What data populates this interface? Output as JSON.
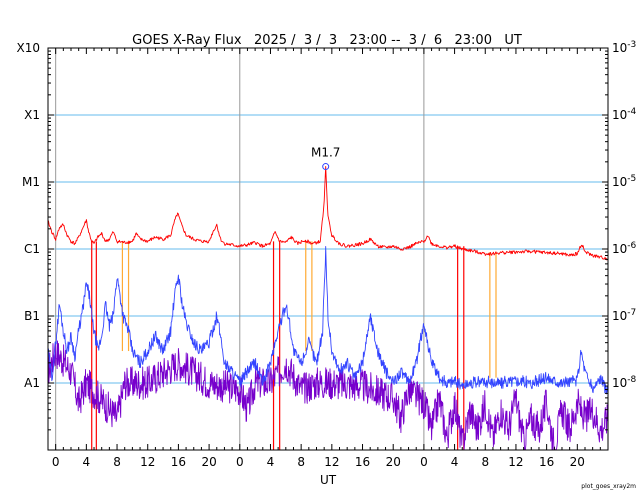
{
  "chart_data": {
    "type": "line",
    "title": "GOES X-Ray Flux   2025 /  3 /  3   23:00 --  3 /  6   23:00   UT",
    "xlabel": "UT",
    "footer": "plot_goes_xray2m",
    "x_range_hours": [
      -1,
      72
    ],
    "x_ticks": [
      {
        "t": 0,
        "label": "0"
      },
      {
        "t": 4,
        "label": "4"
      },
      {
        "t": 8,
        "label": "8"
      },
      {
        "t": 12,
        "label": "12"
      },
      {
        "t": 16,
        "label": "16"
      },
      {
        "t": 20,
        "label": "20"
      },
      {
        "t": 24,
        "label": "0"
      },
      {
        "t": 28,
        "label": "4"
      },
      {
        "t": 32,
        "label": "8"
      },
      {
        "t": 36,
        "label": "12"
      },
      {
        "t": 40,
        "label": "16"
      },
      {
        "t": 44,
        "label": "20"
      },
      {
        "t": 48,
        "label": "0"
      },
      {
        "t": 52,
        "label": "4"
      },
      {
        "t": 56,
        "label": "8"
      },
      {
        "t": 60,
        "label": "12"
      },
      {
        "t": 64,
        "label": "16"
      },
      {
        "t": 68,
        "label": "20"
      }
    ],
    "day_boundaries": [
      0,
      24,
      48
    ],
    "y_scale": "log",
    "ylim": [
      1e-09,
      0.001
    ],
    "y_left_labels": [
      {
        "value": 0.001,
        "label": "X10"
      },
      {
        "value": 0.0001,
        "label": "X1"
      },
      {
        "value": 1e-05,
        "label": "M1"
      },
      {
        "value": 1e-06,
        "label": "C1"
      },
      {
        "value": 1e-07,
        "label": "B1"
      },
      {
        "value": 1e-08,
        "label": "A1"
      }
    ],
    "y_right_labels": [
      {
        "value": 0.001,
        "base": "10",
        "exp": "-3"
      },
      {
        "value": 0.0001,
        "base": "10",
        "exp": "-4"
      },
      {
        "value": 1e-05,
        "base": "10",
        "exp": "-5"
      },
      {
        "value": 1e-06,
        "base": "10",
        "exp": "-6"
      },
      {
        "value": 1e-07,
        "base": "10",
        "exp": "-7"
      },
      {
        "value": 1e-08,
        "base": "10",
        "exp": "-8"
      }
    ],
    "flare_annotation": {
      "t": 35.2,
      "value": 1.7e-05,
      "label": "M1.7"
    },
    "colors": {
      "long": "#ff0000",
      "short": "#3344ff",
      "short_low": "#7700cc",
      "gap_orange": "#ffaa33",
      "gap_red": "#ff0000",
      "grid_blue": "#66bbee",
      "day_line": "#999999"
    },
    "series": [
      {
        "key": "long",
        "points": [
          [
            -1,
            2.6e-06
          ],
          [
            -0.5,
            1.8e-06
          ],
          [
            0,
            1.4e-06
          ],
          [
            0.5,
            2.1e-06
          ],
          [
            1,
            2.3e-06
          ],
          [
            1.5,
            1.6e-06
          ],
          [
            2,
            1.3e-06
          ],
          [
            2.5,
            1.2e-06
          ],
          [
            3,
            1.5e-06
          ],
          [
            3.5,
            2e-06
          ],
          [
            4,
            2.7e-06
          ],
          [
            4.3,
            1.8e-06
          ],
          [
            4.7,
            1.3e-06
          ],
          [
            5,
            1.2e-06
          ],
          [
            5.5,
            1.5e-06
          ],
          [
            6,
            1.7e-06
          ],
          [
            6.5,
            1.3e-06
          ],
          [
            7,
            1.4e-06
          ],
          [
            7.5,
            1.8e-06
          ],
          [
            8,
            1.3e-06
          ],
          [
            9,
            1.25e-06
          ],
          [
            10,
            1.3e-06
          ],
          [
            10.5,
            1.7e-06
          ],
          [
            11,
            1.4e-06
          ],
          [
            12,
            1.3e-06
          ],
          [
            13,
            1.5e-06
          ],
          [
            14,
            1.4e-06
          ],
          [
            15,
            1.6e-06
          ],
          [
            15.5,
            2.6e-06
          ],
          [
            15.9,
            3.4e-06
          ],
          [
            16.4,
            2.3e-06
          ],
          [
            17,
            1.6e-06
          ],
          [
            18,
            1.4e-06
          ],
          [
            19,
            1.3e-06
          ],
          [
            20,
            1.3e-06
          ],
          [
            20.5,
            1.8e-06
          ],
          [
            21,
            2.3e-06
          ],
          [
            21.5,
            1.4e-06
          ],
          [
            22,
            1.2e-06
          ],
          [
            23,
            1.15e-06
          ],
          [
            24,
            1.1e-06
          ],
          [
            25,
            1.15e-06
          ],
          [
            26,
            1.25e-06
          ],
          [
            27,
            1.1e-06
          ],
          [
            28,
            1.2e-06
          ],
          [
            28.6,
            1.8e-06
          ],
          [
            29.2,
            1.3e-06
          ],
          [
            30,
            1.25e-06
          ],
          [
            30.7,
            1.5e-06
          ],
          [
            31.5,
            1.2e-06
          ],
          [
            32.5,
            1.35e-06
          ],
          [
            33.5,
            1.2e-06
          ],
          [
            34.5,
            1.3e-06
          ],
          [
            35,
            5e-06
          ],
          [
            35.2,
            1.7e-05
          ],
          [
            35.5,
            3e-06
          ],
          [
            36,
            1.6e-06
          ],
          [
            37,
            1.2e-06
          ],
          [
            38,
            1.1e-06
          ],
          [
            39,
            1.15e-06
          ],
          [
            40,
            1.2e-06
          ],
          [
            41,
            1.4e-06
          ],
          [
            42,
            1.1e-06
          ],
          [
            43,
            1.05e-06
          ],
          [
            44,
            1.1e-06
          ],
          [
            45,
            1e-06
          ],
          [
            46,
            1.05e-06
          ],
          [
            47,
            1.2e-06
          ],
          [
            48,
            1.3e-06
          ],
          [
            48.5,
            1.6e-06
          ],
          [
            49,
            1.2e-06
          ],
          [
            50,
            1.1e-06
          ],
          [
            51,
            1.05e-06
          ],
          [
            52,
            1.1e-06
          ],
          [
            53,
            1e-06
          ],
          [
            54,
            9.5e-07
          ],
          [
            55,
            9e-07
          ],
          [
            56,
            8.5e-07
          ],
          [
            57,
            8.5e-07
          ],
          [
            58,
            8.8e-07
          ],
          [
            60,
            9e-07
          ],
          [
            62,
            9.2e-07
          ],
          [
            64,
            8.8e-07
          ],
          [
            66,
            8.5e-07
          ],
          [
            67,
            8e-07
          ],
          [
            68,
            8.5e-07
          ],
          [
            68.6,
            1.2e-06
          ],
          [
            69,
            9e-07
          ],
          [
            70,
            8e-07
          ],
          [
            71,
            7.5e-07
          ],
          [
            72,
            7.2e-07
          ]
        ]
      },
      {
        "key": "short",
        "points": [
          [
            -1,
            3e-08
          ],
          [
            -0.5,
            1.2e-08
          ],
          [
            0,
            4e-08
          ],
          [
            0.5,
            1.5e-07
          ],
          [
            1,
            6e-08
          ],
          [
            1.5,
            3e-08
          ],
          [
            2,
            5e-08
          ],
          [
            2.5,
            2.5e-08
          ],
          [
            3,
            6e-08
          ],
          [
            3.5,
            1.2e-07
          ],
          [
            4,
            3e-07
          ],
          [
            4.4,
            2e-07
          ],
          [
            4.8,
            8e-08
          ],
          [
            5.5,
            3e-08
          ],
          [
            6,
            5e-08
          ],
          [
            6.5,
            1.5e-07
          ],
          [
            7,
            7e-08
          ],
          [
            7.5,
            1e-07
          ],
          [
            8,
            4e-07
          ],
          [
            8.4,
            2e-07
          ],
          [
            8.8,
            1e-07
          ],
          [
            9.5,
            6e-08
          ],
          [
            10,
            3e-08
          ],
          [
            11,
            2e-08
          ],
          [
            12,
            3e-08
          ],
          [
            13,
            5e-08
          ],
          [
            14,
            3e-08
          ],
          [
            15,
            6e-08
          ],
          [
            15.5,
            2e-07
          ],
          [
            16,
            4e-07
          ],
          [
            16.5,
            1.5e-07
          ],
          [
            17,
            8e-08
          ],
          [
            18,
            4e-08
          ],
          [
            19,
            3e-08
          ],
          [
            20,
            4e-08
          ],
          [
            21,
            1e-07
          ],
          [
            21.5,
            5e-08
          ],
          [
            22,
            2e-08
          ],
          [
            23,
            1.5e-08
          ],
          [
            24,
            1e-08
          ],
          [
            25,
            1.5e-08
          ],
          [
            26,
            2e-08
          ],
          [
            27,
            1e-08
          ],
          [
            28,
            2e-08
          ],
          [
            29,
            6e-08
          ],
          [
            30,
            1.5e-07
          ],
          [
            30.5,
            8e-08
          ],
          [
            31,
            3e-08
          ],
          [
            32,
            2e-08
          ],
          [
            33,
            4e-08
          ],
          [
            34,
            2e-08
          ],
          [
            34.8,
            6e-08
          ],
          [
            35.2,
            1e-06
          ],
          [
            35.5,
            1e-07
          ],
          [
            36,
            3e-08
          ],
          [
            37,
            1.5e-08
          ],
          [
            38,
            2e-08
          ],
          [
            39,
            1.2e-08
          ],
          [
            40,
            2e-08
          ],
          [
            41,
            1e-07
          ],
          [
            42,
            3e-08
          ],
          [
            43,
            1.5e-08
          ],
          [
            44,
            1e-08
          ],
          [
            45,
            1.5e-08
          ],
          [
            46,
            1e-08
          ],
          [
            47,
            2e-08
          ],
          [
            48,
            8e-08
          ],
          [
            49,
            2e-08
          ],
          [
            50,
            1.2e-08
          ],
          [
            51,
            1e-08
          ],
          [
            52,
            1.1e-08
          ],
          [
            53,
            9e-09
          ],
          [
            54,
            1e-08
          ],
          [
            56,
            1.05e-08
          ],
          [
            58,
            1e-08
          ],
          [
            60,
            1.1e-08
          ],
          [
            62,
            1e-08
          ],
          [
            64,
            1.2e-08
          ],
          [
            66,
            1e-08
          ],
          [
            68,
            1.1e-08
          ],
          [
            68.5,
            3e-08
          ],
          [
            69,
            1.5e-08
          ],
          [
            70,
            8e-09
          ],
          [
            71,
            1.2e-08
          ],
          [
            72,
            7e-09
          ]
        ]
      },
      {
        "key": "short_low",
        "points": [
          [
            -1,
            1.5e-08
          ],
          [
            0,
            3e-08
          ],
          [
            2,
            1.5e-08
          ],
          [
            3,
            5e-09
          ],
          [
            4,
            1e-08
          ],
          [
            8,
            3e-09
          ],
          [
            9,
            1e-08
          ],
          [
            12,
            1e-08
          ],
          [
            16,
            2e-08
          ],
          [
            20,
            1e-08
          ],
          [
            24,
            8e-09
          ],
          [
            25,
            4e-09
          ],
          [
            26,
            1e-08
          ],
          [
            28,
            1e-08
          ],
          [
            30,
            2e-08
          ],
          [
            32,
            8e-09
          ],
          [
            34,
            1e-08
          ],
          [
            36,
            1e-08
          ],
          [
            40,
            9e-09
          ],
          [
            44,
            6e-09
          ],
          [
            45,
            3e-09
          ],
          [
            46,
            8e-09
          ],
          [
            48,
            5e-09
          ],
          [
            49,
            2e-09
          ],
          [
            50,
            6e-09
          ],
          [
            51,
            1.5e-09
          ],
          [
            52,
            5e-09
          ],
          [
            53,
            1.2e-09
          ],
          [
            54,
            4e-09
          ],
          [
            55,
            2e-09
          ],
          [
            56,
            5e-09
          ],
          [
            57,
            1.5e-09
          ],
          [
            58,
            4e-09
          ],
          [
            59,
            2e-09
          ],
          [
            60,
            6e-09
          ],
          [
            61,
            1.3e-09
          ],
          [
            62,
            3e-09
          ],
          [
            63,
            2e-09
          ],
          [
            64,
            5e-09
          ],
          [
            65,
            1.1e-09
          ],
          [
            66,
            4e-09
          ],
          [
            67,
            2e-09
          ],
          [
            68,
            5e-09
          ],
          [
            69,
            3e-09
          ],
          [
            70,
            4e-09
          ],
          [
            71,
            2e-09
          ],
          [
            72,
            3e-09
          ]
        ]
      }
    ],
    "gap_lines": [
      {
        "t": 4.7,
        "from": 1.3e-06,
        "to": 1e-09,
        "color_key": "gap_red"
      },
      {
        "t": 5.3,
        "from": 1.3e-06,
        "to": 1e-09,
        "color_key": "gap_red"
      },
      {
        "t": 8.7,
        "from": 1.3e-06,
        "to": 3e-08,
        "color_key": "gap_orange"
      },
      {
        "t": 9.5,
        "from": 1.3e-06,
        "to": 3e-08,
        "color_key": "gap_orange"
      },
      {
        "t": 28.4,
        "from": 1.3e-06,
        "to": 1e-09,
        "color_key": "gap_red"
      },
      {
        "t": 29.2,
        "from": 1.3e-06,
        "to": 1e-09,
        "color_key": "gap_red"
      },
      {
        "t": 32.6,
        "from": 1.3e-06,
        "to": 3e-08,
        "color_key": "gap_orange"
      },
      {
        "t": 33.4,
        "from": 1.3e-06,
        "to": 3e-08,
        "color_key": "gap_orange"
      },
      {
        "t": 52.4,
        "from": 1.1e-06,
        "to": 1e-09,
        "color_key": "gap_red"
      },
      {
        "t": 53.2,
        "from": 1.1e-06,
        "to": 1e-09,
        "color_key": "gap_red"
      },
      {
        "t": 56.6,
        "from": 9e-07,
        "to": 1.2e-08,
        "color_key": "gap_orange"
      },
      {
        "t": 57.4,
        "from": 9e-07,
        "to": 1.2e-08,
        "color_key": "gap_orange"
      }
    ]
  }
}
